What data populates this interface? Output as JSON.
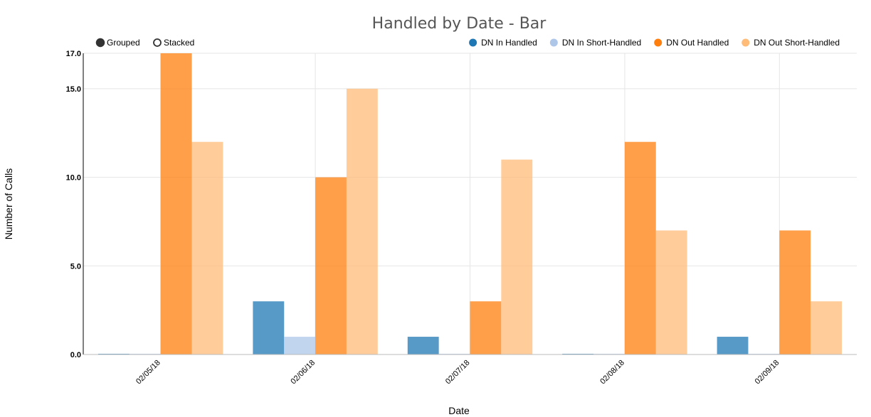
{
  "chart_data": {
    "type": "bar",
    "title": "Handled by Date - Bar",
    "xlabel": "Date",
    "ylabel": "Number of Calls",
    "categories": [
      "02/05/18",
      "02/06/18",
      "02/07/18",
      "02/08/18",
      "02/09/18"
    ],
    "series": [
      {
        "name": "DN In Handled",
        "color": "#1f77b4",
        "values": [
          0,
          3,
          1,
          0,
          1
        ]
      },
      {
        "name": "DN In Short-Handled",
        "color": "#aec7e8",
        "values": [
          0,
          1,
          0,
          0,
          0
        ]
      },
      {
        "name": "DN Out Handled",
        "color": "#ff7f0e",
        "values": [
          17,
          10,
          3,
          12,
          7
        ]
      },
      {
        "name": "DN Out Short-Handled",
        "color": "#ffbb78",
        "values": [
          12,
          15,
          11,
          7,
          3
        ]
      }
    ],
    "ylim": [
      0,
      17
    ],
    "yticks": [
      "0.0",
      "5.0",
      "10.0",
      "15.0",
      "17.0"
    ],
    "grid": true,
    "legend_position": "top-right"
  },
  "controls": {
    "grouped_label": "Grouped",
    "stacked_label": "Stacked",
    "selected": "grouped"
  }
}
